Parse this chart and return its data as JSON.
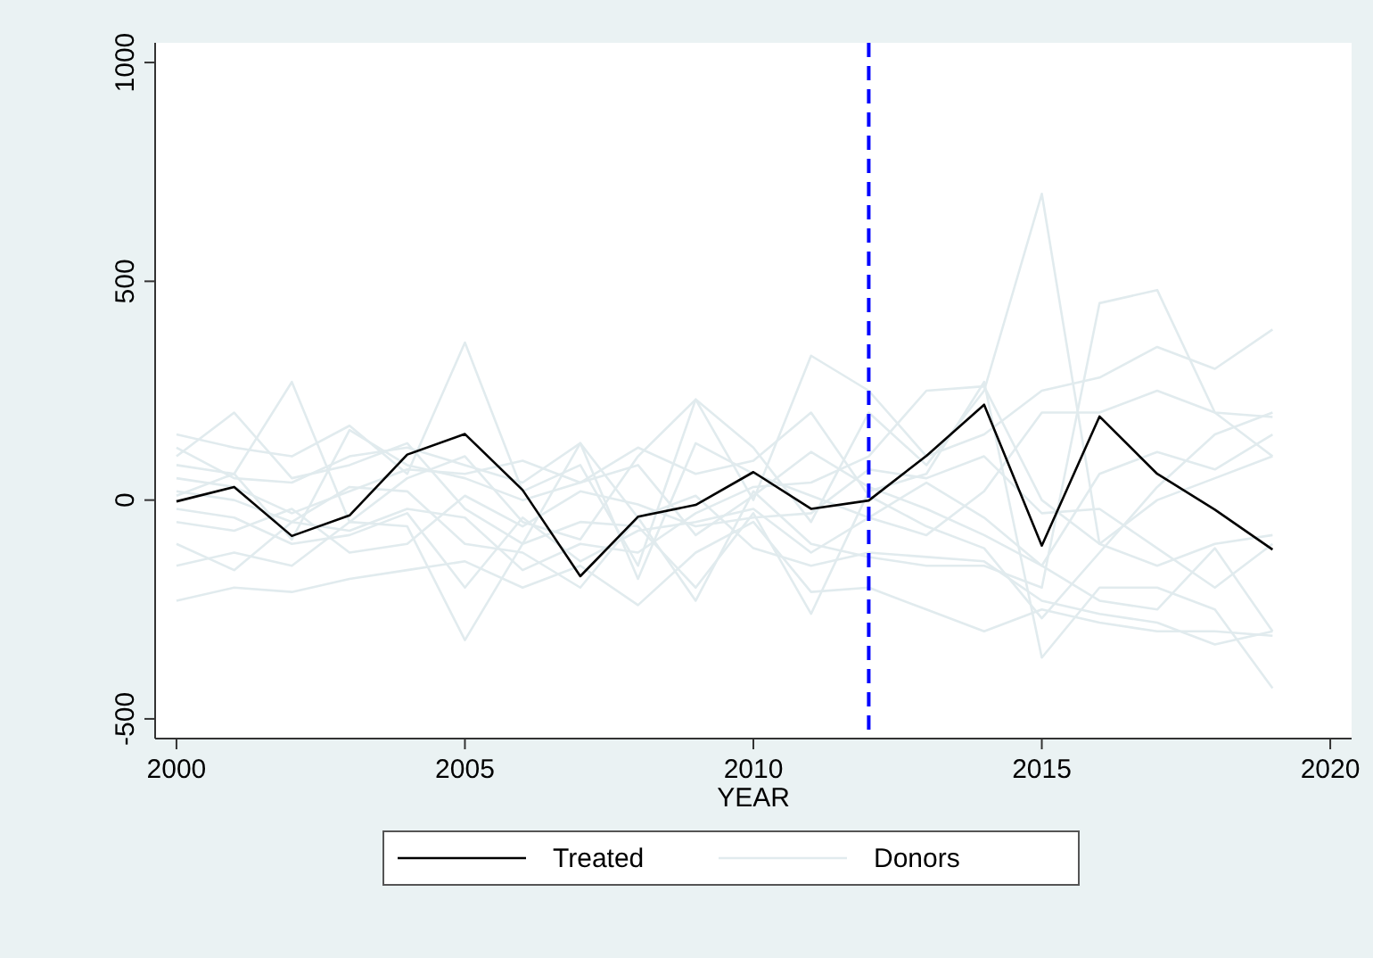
{
  "chart_data": {
    "type": "line",
    "xlabel": "YEAR",
    "x": [
      2000,
      2001,
      2002,
      2003,
      2004,
      2005,
      2006,
      2007,
      2008,
      2009,
      2010,
      2011,
      2012,
      2013,
      2014,
      2015,
      2016,
      2017,
      2018,
      2019
    ],
    "xlim": [
      1999.63,
      2020.37
    ],
    "xticks": [
      2000,
      2005,
      2010,
      2015,
      2020
    ],
    "ylim": [
      -545,
      1045
    ],
    "yticks": [
      -500,
      0,
      500,
      1000
    ],
    "grid": false,
    "legend": "bottom",
    "ref_lines": [
      {
        "axis": "x",
        "value": 2012,
        "color": "#0000ff",
        "line_style": "dashed"
      }
    ],
    "series": [
      {
        "name": "Donors",
        "color": "#e1ebee",
        "values": [
          150,
          120,
          100,
          170,
          60,
          360,
          20,
          80,
          -150,
          230,
          120,
          -50,
          200,
          80,
          250,
          700,
          -100,
          0,
          50,
          100
        ]
      },
      {
        "color": "#e1ebee",
        "values": [
          100,
          200,
          50,
          80,
          130,
          -20,
          -100,
          130,
          -40,
          -230,
          20,
          -100,
          -130,
          -150,
          -150,
          -200,
          450,
          480,
          200,
          100
        ]
      },
      {
        "color": "#e1ebee",
        "values": [
          -230,
          -200,
          -210,
          -180,
          -160,
          -140,
          -200,
          -150,
          -240,
          -120,
          -50,
          -210,
          -200,
          -250,
          -300,
          -250,
          -280,
          -300,
          -300,
          -310
        ]
      },
      {
        "color": "#e1ebee",
        "values": [
          -150,
          -120,
          -150,
          -50,
          -60,
          -320,
          -100,
          -50,
          -60,
          -200,
          -30,
          -260,
          20,
          60,
          270,
          -360,
          -200,
          -200,
          -250,
          -430
        ]
      },
      {
        "color": "#e1ebee",
        "values": [
          80,
          60,
          270,
          -50,
          50,
          100,
          -50,
          -90,
          100,
          230,
          0,
          330,
          250,
          100,
          150,
          250,
          280,
          350,
          300,
          390
        ]
      },
      {
        "color": "#e1ebee",
        "values": [
          50,
          30,
          -30,
          20,
          70,
          60,
          90,
          40,
          80,
          -80,
          10,
          110,
          30,
          -20,
          -80,
          -150,
          -230,
          -250,
          -110,
          -300
        ]
      },
      {
        "color": "#e1ebee",
        "values": [
          -50,
          -70,
          -20,
          -120,
          -100,
          10,
          -60,
          20,
          -10,
          -60,
          -40,
          -30,
          70,
          50,
          100,
          -30,
          -20,
          -110,
          -200,
          -100
        ]
      },
      {
        "color": "#e1ebee",
        "values": [
          20,
          0,
          -50,
          30,
          20,
          -100,
          -120,
          -200,
          -40,
          10,
          -110,
          -150,
          -120,
          -130,
          -140,
          -230,
          -260,
          -280,
          -330,
          -300
        ]
      },
      {
        "color": "#e1ebee",
        "values": [
          120,
          50,
          40,
          100,
          120,
          80,
          40,
          130,
          -180,
          130,
          60,
          10,
          -40,
          -80,
          20,
          200,
          200,
          250,
          200,
          190
        ]
      },
      {
        "color": "#e1ebee",
        "values": [
          -100,
          -160,
          -50,
          -70,
          -20,
          -40,
          -160,
          -100,
          -120,
          -30,
          30,
          40,
          100,
          250,
          260,
          0,
          -100,
          -150,
          -100,
          -80
        ]
      },
      {
        "color": "#e1ebee",
        "values": [
          10,
          60,
          -90,
          160,
          80,
          50,
          0,
          40,
          120,
          60,
          90,
          200,
          10,
          -60,
          -110,
          -270,
          -120,
          30,
          150,
          200
        ]
      },
      {
        "color": "#e1ebee",
        "values": [
          -20,
          -40,
          -100,
          -80,
          -30,
          -200,
          -40,
          -140,
          -70,
          -50,
          -20,
          -120,
          -40,
          40,
          -40,
          -150,
          60,
          110,
          70,
          150
        ]
      },
      {
        "name": "Treated",
        "color": "#000000",
        "values": [
          -3,
          30,
          -82,
          -35,
          104,
          151,
          23,
          -174,
          -38,
          -11,
          64,
          -20,
          -1,
          101,
          218,
          -104,
          191,
          60,
          -22,
          -113
        ]
      }
    ]
  }
}
